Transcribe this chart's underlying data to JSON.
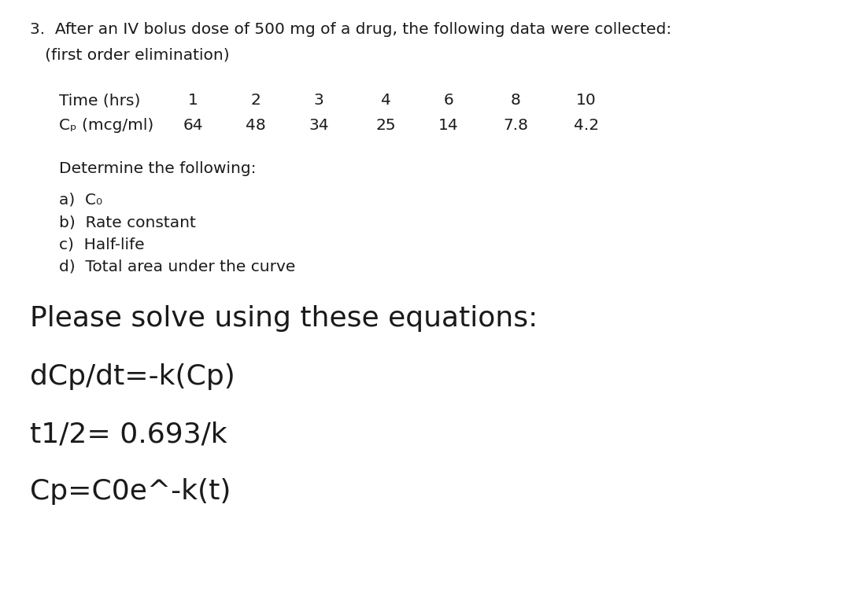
{
  "background_color": "#ffffff",
  "question_number": "3.",
  "title_line1": "  After an IV bolus dose of 500 mg of a drug, the following data were collected:",
  "title_line2": "   (first order elimination)",
  "table_header_label": "Time (hrs)",
  "table_header_values": [
    "1",
    "2",
    "3",
    "4",
    "6",
    "8",
    "10"
  ],
  "table_data_label": "Cₚ (mcg/ml)",
  "table_data_values": [
    "64",
    "48",
    "34",
    "25",
    "14",
    "7.8",
    "4.2"
  ],
  "determine_text": "Determine the following:",
  "items": [
    "a)  C₀",
    "b)  Rate constant",
    "c)  Half-life",
    "d)  Total area under the curve"
  ],
  "please_solve_text": "Please solve using these equations:",
  "equation1": "dCp/dt=-k(Cp)",
  "equation2": "t1/2= 0.693/k",
  "equation3": "Cp=C0e^-k(t)",
  "font_family": "DejaVu Sans",
  "title_fontsize": 14.5,
  "table_fontsize": 14.5,
  "body_fontsize": 14.5,
  "please_solve_fontsize": 26,
  "equation_fontsize": 26,
  "text_color": "#1a1a1a",
  "fig_width": 10.8,
  "fig_height": 7.63,
  "dpi": 100
}
